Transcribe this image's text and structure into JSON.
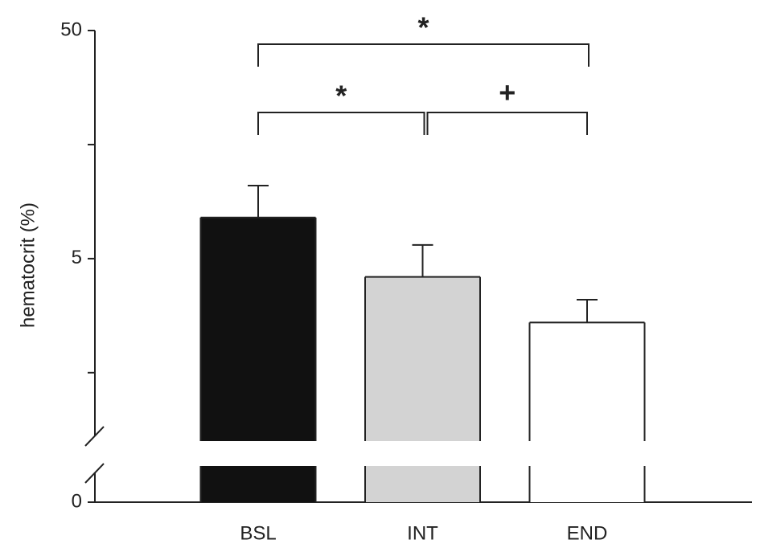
{
  "chart_data": {
    "type": "bar",
    "ylabel": "hematocrit (%)",
    "categories": [
      "BSL",
      "INT",
      "END"
    ],
    "values": [
      45.9,
      44.6,
      43.6
    ],
    "errors": [
      0.7,
      0.7,
      0.5
    ],
    "colors": [
      "#111111",
      "#d3d3d3",
      "#ffffff"
    ],
    "ylim": [
      0,
      50
    ],
    "y_break": 41,
    "yticks": [
      0,
      {
        "value": 45,
        "label": "5"
      },
      50
    ],
    "minor_yticks": [
      42.5,
      47.5
    ],
    "annotations": [
      {
        "text": "*",
        "from": 0,
        "to": 2
      },
      {
        "text": "*",
        "from": 0,
        "to": 1
      },
      {
        "text": "+",
        "from": 1,
        "to": 2
      }
    ]
  }
}
